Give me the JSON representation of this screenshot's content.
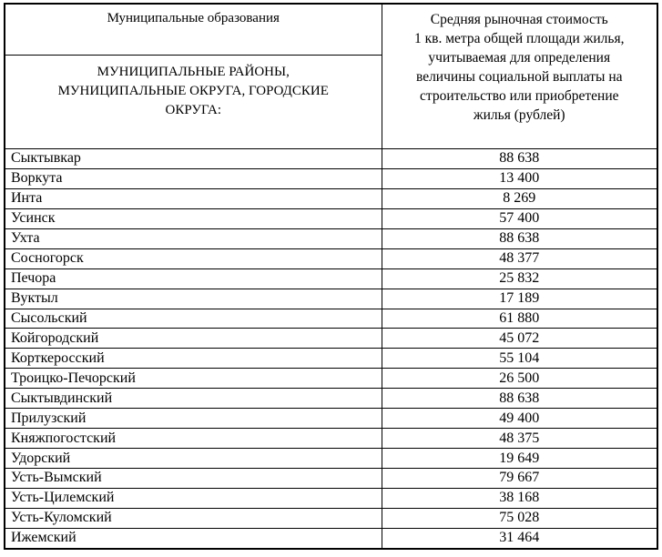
{
  "table": {
    "header": {
      "left_top": "Муниципальные образования",
      "left_bottom": "МУНИЦИПАЛЬНЫЕ РАЙОНЫ,\nМУНИЦИПАЛЬНЫЕ ОКРУГА, ГОРОДСКИЕ\nОКРУГА:",
      "right": "Средняя рыночная стоимость\n1 кв. метра общей площади жилья,\nучитываемая для определения\nвеличины социальной выплаты на\nстроительство или приобретение\nжилья (рублей)"
    },
    "rows": [
      {
        "municipality": "Сыктывкар",
        "value": "88 638"
      },
      {
        "municipality": "Воркута",
        "value": "13 400"
      },
      {
        "municipality": "Инта",
        "value": "8 269"
      },
      {
        "municipality": "Усинск",
        "value": "57 400"
      },
      {
        "municipality": "Ухта",
        "value": "88 638"
      },
      {
        "municipality": "Сосногорск",
        "value": "48 377"
      },
      {
        "municipality": "Печора",
        "value": "25 832"
      },
      {
        "municipality": "Вуктыл",
        "value": "17 189"
      },
      {
        "municipality": "Сысольский",
        "value": "61 880"
      },
      {
        "municipality": "Койгородский",
        "value": "45 072"
      },
      {
        "municipality": "Корткеросский",
        "value": "55 104"
      },
      {
        "municipality": "Троицко-Печорский",
        "value": "26 500"
      },
      {
        "municipality": "Сыктывдинский",
        "value": "88 638"
      },
      {
        "municipality": "Прилузский",
        "value": "49 400"
      },
      {
        "municipality": "Княжпогостский",
        "value": "48 375"
      },
      {
        "municipality": "Удорский",
        "value": "19 649"
      },
      {
        "municipality": "Усть-Вымский",
        "value": "79 667"
      },
      {
        "municipality": "Усть-Цилемский",
        "value": "38 168"
      },
      {
        "municipality": "Усть-Куломский",
        "value": "75 028"
      },
      {
        "municipality": "Ижемский",
        "value": "31 464"
      }
    ]
  }
}
